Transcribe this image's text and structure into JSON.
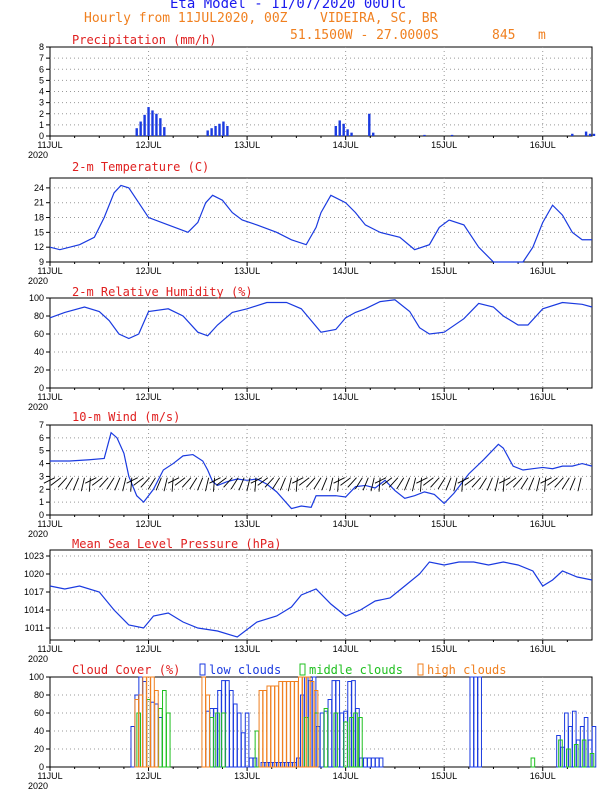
{
  "header": {
    "title": "Eta Model - 11/07/2020 00UTC",
    "subtitle": "Hourly from 11JUL2020, 00Z",
    "location": "VIDEIRA, SC, BR",
    "coords": "51.1500W - 27.0000S",
    "elevation": "845",
    "elevation_unit": "m"
  },
  "colors": {
    "title": "#1a1aee",
    "subtitle": "#f08020",
    "panel_title": "#e02020",
    "series": "#1a3ae0",
    "low": "#1a3ae0",
    "middle": "#20c020",
    "high": "#f08020"
  },
  "x_axis": {
    "tick_labels": [
      "11JUL",
      "12JUL",
      "13JUL",
      "14JUL",
      "15JUL",
      "16JUL"
    ],
    "tick_days": [
      0,
      1,
      2,
      3,
      4,
      5
    ],
    "year_label": "2020",
    "range_days": [
      0,
      5.5
    ]
  },
  "chart_data": [
    {
      "type": "bar",
      "title": "Precipitation (mm/h)",
      "ylim": [
        0,
        8
      ],
      "yticks": [
        "0",
        "1",
        "2",
        "3",
        "4",
        "5",
        "6",
        "7",
        "8"
      ],
      "series": [
        {
          "name": "precipitation",
          "x_days": [
            0.88,
            0.92,
            0.96,
            1.0,
            1.04,
            1.08,
            1.12,
            1.16,
            1.6,
            1.64,
            1.68,
            1.72,
            1.76,
            1.8,
            2.9,
            2.94,
            2.98,
            3.02,
            3.06,
            3.24,
            3.28,
            3.8,
            4.08,
            5.3,
            5.44,
            5.48,
            5.52
          ],
          "values": [
            0.7,
            1.3,
            1.9,
            2.6,
            2.3,
            2.0,
            1.6,
            0.8,
            0.5,
            0.7,
            0.9,
            1.1,
            1.3,
            0.9,
            0.9,
            1.4,
            1.1,
            0.6,
            0.3,
            2.0,
            0.3,
            0.1,
            0.1,
            0.2,
            0.4,
            0.2,
            0.2
          ]
        }
      ]
    },
    {
      "type": "line",
      "title": "2-m Temperature (C)",
      "ylim": [
        9,
        26
      ],
      "yticks": [
        "9",
        "12",
        "15",
        "18",
        "21",
        "24"
      ],
      "series": [
        {
          "name": "temperature",
          "x_days": [
            0,
            0.1,
            0.3,
            0.45,
            0.55,
            0.65,
            0.72,
            0.8,
            0.9,
            1.0,
            1.2,
            1.4,
            1.5,
            1.58,
            1.65,
            1.75,
            1.85,
            1.95,
            2.1,
            2.3,
            2.45,
            2.6,
            2.7,
            2.75,
            2.85,
            3.0,
            3.1,
            3.2,
            3.35,
            3.55,
            3.7,
            3.85,
            3.95,
            4.05,
            4.2,
            4.35,
            4.5,
            4.7,
            4.8,
            4.9,
            5.0,
            5.1,
            5.2,
            5.3,
            5.4,
            5.5
          ],
          "values": [
            12,
            11.5,
            12.5,
            14,
            18,
            23,
            24.5,
            24,
            21,
            18,
            16.5,
            15,
            17,
            21,
            22.5,
            21.5,
            19,
            17.5,
            16.5,
            15,
            13.5,
            12.5,
            16,
            19,
            22.5,
            21,
            19,
            16.5,
            15,
            14,
            11.5,
            12.5,
            16,
            17.5,
            16.5,
            12,
            9,
            9,
            9,
            12,
            17,
            20.5,
            18.5,
            15,
            13.5,
            13.5
          ]
        }
      ]
    },
    {
      "type": "line",
      "title": "2-m Relative Humidity (%)",
      "ylim": [
        0,
        100
      ],
      "yticks": [
        "0",
        "20",
        "40",
        "60",
        "80",
        "100"
      ],
      "series": [
        {
          "name": "relative_humidity",
          "x_days": [
            0,
            0.15,
            0.35,
            0.5,
            0.6,
            0.7,
            0.8,
            0.9,
            1.0,
            1.2,
            1.35,
            1.5,
            1.6,
            1.7,
            1.85,
            2.0,
            2.2,
            2.4,
            2.55,
            2.65,
            2.75,
            2.9,
            3.0,
            3.1,
            3.2,
            3.35,
            3.5,
            3.65,
            3.75,
            3.85,
            4.0,
            4.2,
            4.35,
            4.5,
            4.6,
            4.75,
            4.85,
            5.0,
            5.2,
            5.4,
            5.5
          ],
          "values": [
            78,
            84,
            90,
            85,
            75,
            60,
            55,
            60,
            85,
            88,
            80,
            62,
            58,
            70,
            84,
            88,
            95,
            95,
            88,
            75,
            62,
            65,
            78,
            84,
            88,
            96,
            98,
            85,
            67,
            60,
            62,
            77,
            94,
            90,
            80,
            70,
            70,
            88,
            95,
            93,
            90
          ]
        }
      ]
    },
    {
      "type": "line",
      "title": "10-m Wind (m/s)",
      "ylim": [
        0,
        7
      ],
      "yticks": [
        "0",
        "1",
        "2",
        "3",
        "4",
        "5",
        "6",
        "7"
      ],
      "series": [
        {
          "name": "wind_speed",
          "x_days": [
            0,
            0.2,
            0.4,
            0.55,
            0.62,
            0.68,
            0.75,
            0.8,
            0.88,
            0.95,
            1.05,
            1.15,
            1.25,
            1.35,
            1.45,
            1.55,
            1.6,
            1.65,
            1.7,
            1.8,
            1.9,
            2.0,
            2.1,
            2.2,
            2.3,
            2.45,
            2.55,
            2.65,
            2.7,
            2.8,
            2.9,
            3.0,
            3.1,
            3.2,
            3.3,
            3.4,
            3.5,
            3.6,
            3.7,
            3.8,
            3.9,
            4.0,
            4.1,
            4.25,
            4.4,
            4.5,
            4.55,
            4.6,
            4.7,
            4.8,
            4.9,
            5.0,
            5.1,
            5.2,
            5.3,
            5.4,
            5.5
          ],
          "values": [
            4.2,
            4.2,
            4.3,
            4.4,
            6.4,
            6.0,
            4.8,
            3.0,
            1.5,
            1.0,
            2.0,
            3.5,
            4.0,
            4.6,
            4.7,
            4.2,
            3.5,
            2.6,
            2.3,
            2.6,
            2.8,
            2.7,
            2.8,
            2.4,
            1.8,
            0.5,
            0.7,
            0.6,
            1.5,
            1.5,
            1.5,
            1.4,
            2.2,
            2.3,
            2.1,
            2.7,
            1.9,
            1.3,
            1.5,
            1.8,
            1.6,
            0.9,
            1.7,
            3.2,
            4.3,
            5.1,
            5.5,
            5.2,
            3.8,
            3.5,
            3.6,
            3.7,
            3.6,
            3.8,
            3.8,
            4.0,
            3.8
          ]
        }
      ]
    },
    {
      "type": "line",
      "title": "Mean Sea Level Pressure (hPa)",
      "ylim": [
        1009,
        1024
      ],
      "yticks": [
        "1011",
        "1014",
        "1017",
        "1020",
        "1023"
      ],
      "series": [
        {
          "name": "pressure",
          "x_days": [
            0,
            0.15,
            0.3,
            0.5,
            0.65,
            0.8,
            0.95,
            1.05,
            1.2,
            1.35,
            1.5,
            1.7,
            1.9,
            2.1,
            2.3,
            2.45,
            2.55,
            2.7,
            2.85,
            3.0,
            3.15,
            3.3,
            3.45,
            3.6,
            3.75,
            3.85,
            4.0,
            4.15,
            4.3,
            4.45,
            4.6,
            4.75,
            4.9,
            5.0,
            5.1,
            5.2,
            5.35,
            5.5
          ],
          "values": [
            1018,
            1017.5,
            1018,
            1017,
            1014,
            1011.5,
            1011,
            1013,
            1013.5,
            1012,
            1011,
            1010.5,
            1009.5,
            1012,
            1013,
            1014.5,
            1016.5,
            1017.5,
            1015,
            1013,
            1014,
            1015.5,
            1016,
            1018,
            1020,
            1022,
            1021.5,
            1022,
            1022,
            1021.5,
            1022,
            1021.5,
            1020.5,
            1018,
            1019,
            1020.5,
            1019.5,
            1019
          ]
        }
      ]
    },
    {
      "type": "bar",
      "title": "Cloud Cover (%)",
      "ylim": [
        0,
        100
      ],
      "yticks": [
        "0",
        "20",
        "40",
        "60",
        "80",
        "100"
      ],
      "legend": [
        "low clouds",
        "middle clouds",
        "high clouds"
      ],
      "series": [
        {
          "name": "low clouds",
          "x_days": [
            0.84,
            0.88,
            0.92,
            0.96,
            1.0,
            1.04,
            1.08,
            1.12,
            1.6,
            1.64,
            1.68,
            1.72,
            1.76,
            1.8,
            1.84,
            1.88,
            1.92,
            1.96,
            2.0,
            2.04,
            2.08,
            2.16,
            2.2,
            2.24,
            2.28,
            2.32,
            2.36,
            2.4,
            2.44,
            2.48,
            2.52,
            2.56,
            2.6,
            2.64,
            2.68,
            2.72,
            2.76,
            2.8,
            2.84,
            2.88,
            2.92,
            2.96,
            3.0,
            3.04,
            3.08,
            3.12,
            3.16,
            3.2,
            3.24,
            3.28,
            3.32,
            3.36,
            4.28,
            4.32,
            4.36,
            5.16,
            5.2,
            5.24,
            5.28,
            5.32,
            5.36,
            5.4,
            5.44,
            5.48,
            5.52
          ],
          "values": [
            45,
            80,
            100,
            95,
            75,
            72,
            70,
            55,
            62,
            65,
            65,
            85,
            96,
            96,
            85,
            70,
            60,
            38,
            60,
            10,
            10,
            5,
            5,
            5,
            5,
            5,
            5,
            5,
            5,
            5,
            10,
            80,
            100,
            96,
            100,
            45,
            60,
            62,
            75,
            96,
            96,
            60,
            62,
            95,
            96,
            65,
            10,
            10,
            10,
            10,
            10,
            10,
            100,
            100,
            100,
            35,
            22,
            60,
            45,
            62,
            30,
            45,
            55,
            30,
            45
          ]
        },
        {
          "name": "middle clouds",
          "x_days": [
            0.9,
            1.0,
            1.12,
            1.16,
            1.2,
            1.64,
            1.7,
            1.76,
            2.1,
            2.6,
            2.7,
            2.8,
            2.9,
            3.0,
            3.06,
            3.1,
            3.15,
            4.9,
            5.18,
            5.26,
            5.34,
            5.42,
            5.5
          ],
          "values": [
            60,
            75,
            65,
            85,
            60,
            55,
            60,
            60,
            40,
            55,
            60,
            65,
            60,
            50,
            55,
            60,
            55,
            10,
            30,
            20,
            25,
            30,
            15
          ]
        },
        {
          "name": "high clouds",
          "x_days": [
            0.88,
            0.92,
            0.96,
            1.0,
            1.04,
            1.08,
            1.56,
            1.6,
            2.14,
            2.18,
            2.22,
            2.26,
            2.3,
            2.34,
            2.38,
            2.42,
            2.46,
            2.5,
            2.54,
            2.58,
            2.62,
            2.66,
            2.7
          ],
          "values": [
            75,
            80,
            100,
            100,
            100,
            85,
            100,
            80,
            85,
            85,
            90,
            90,
            90,
            95,
            95,
            95,
            95,
            95,
            100,
            100,
            100,
            95,
            85
          ]
        }
      ]
    }
  ]
}
